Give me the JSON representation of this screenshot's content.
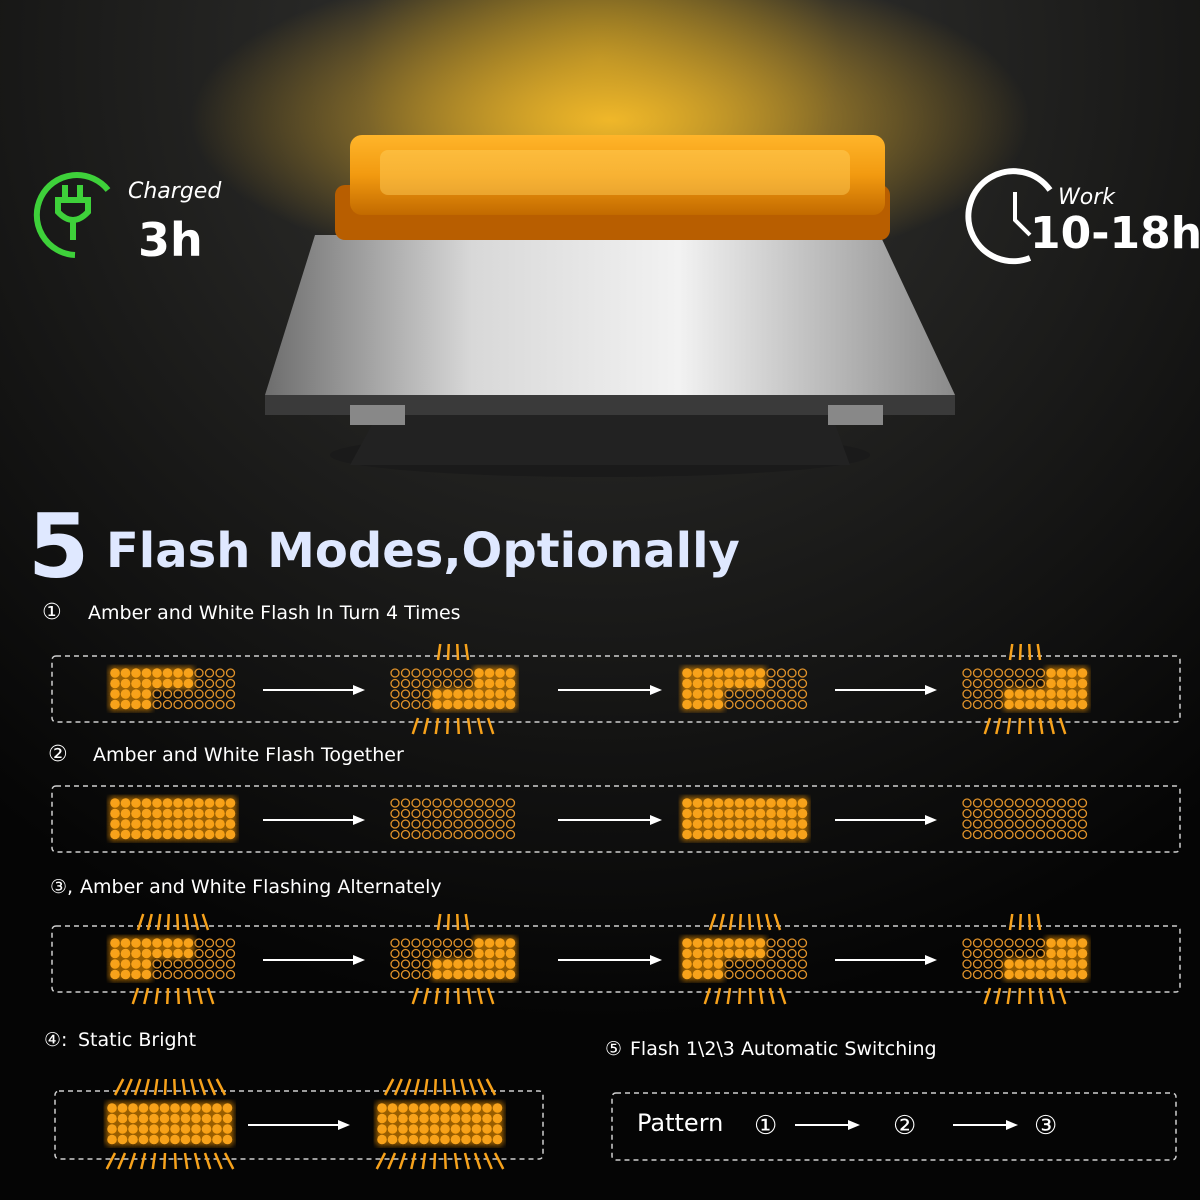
{
  "badges": {
    "charge": {
      "label": "Charged",
      "value": "3h"
    },
    "work": {
      "label": "Work",
      "value": "10-18h"
    }
  },
  "heading": {
    "number": "5",
    "text": "Flash Modes,Optionally"
  },
  "modes": [
    {
      "marker": "①",
      "title": "Amber and White Flash In Turn 4 Times"
    },
    {
      "marker": "②",
      "title": "Amber and White Flash Together"
    },
    {
      "marker": "③,",
      "title": "Amber and White Flashing Alternately"
    },
    {
      "marker": "④:",
      "title": "Static Bright"
    },
    {
      "marker": "⑤",
      "title": "Flash 1\\2\\3 Automatic Switching"
    }
  ],
  "pattern": {
    "label": "Pattern",
    "steps": [
      "①",
      "②",
      "③"
    ]
  }
}
